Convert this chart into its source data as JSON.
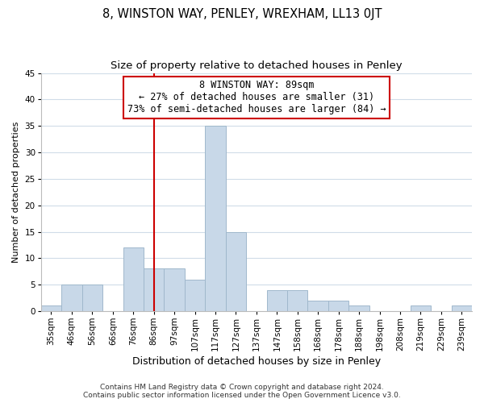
{
  "title": "8, WINSTON WAY, PENLEY, WREXHAM, LL13 0JT",
  "subtitle": "Size of property relative to detached houses in Penley",
  "xlabel": "Distribution of detached houses by size in Penley",
  "ylabel": "Number of detached properties",
  "bar_labels": [
    "35sqm",
    "46sqm",
    "56sqm",
    "66sqm",
    "76sqm",
    "86sqm",
    "97sqm",
    "107sqm",
    "117sqm",
    "127sqm",
    "137sqm",
    "147sqm",
    "158sqm",
    "168sqm",
    "178sqm",
    "188sqm",
    "198sqm",
    "208sqm",
    "219sqm",
    "229sqm",
    "239sqm"
  ],
  "bar_values": [
    1,
    5,
    5,
    0,
    12,
    8,
    8,
    6,
    35,
    15,
    0,
    4,
    4,
    2,
    2,
    1,
    0,
    0,
    1,
    0,
    1
  ],
  "bar_color": "#c8d8e8",
  "bar_edge_color": "#a0b8cc",
  "vline_x": 5,
  "vline_color": "#cc0000",
  "annotation_line1": "8 WINSTON WAY: 89sqm",
  "annotation_line2": "← 27% of detached houses are smaller (31)",
  "annotation_line3": "73% of semi-detached houses are larger (84) →",
  "annotation_box_color": "#ffffff",
  "annotation_box_edge": "#cc0000",
  "ylim": [
    0,
    45
  ],
  "yticks": [
    0,
    5,
    10,
    15,
    20,
    25,
    30,
    35,
    40,
    45
  ],
  "footer_line1": "Contains HM Land Registry data © Crown copyright and database right 2024.",
  "footer_line2": "Contains public sector information licensed under the Open Government Licence v3.0.",
  "background_color": "#ffffff",
  "grid_color": "#d0dce8",
  "title_fontsize": 10.5,
  "subtitle_fontsize": 9.5,
  "xlabel_fontsize": 9,
  "ylabel_fontsize": 8,
  "tick_fontsize": 7.5,
  "annotation_fontsize": 8.5,
  "footer_fontsize": 6.5
}
